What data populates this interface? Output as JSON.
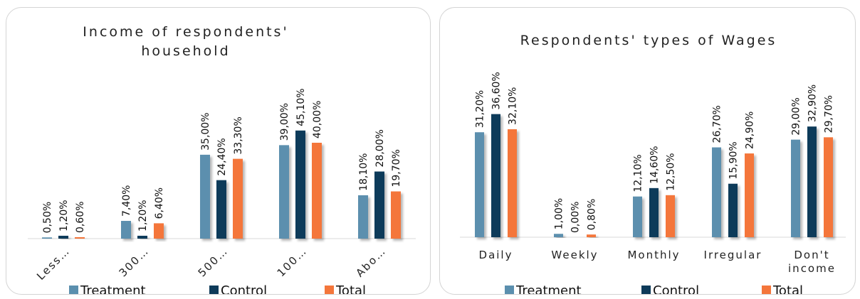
{
  "colors": {
    "Treatment": "#5b8fae",
    "Control": "#0e3b5a",
    "Total": "#f4763b"
  },
  "chart_data": [
    {
      "type": "bar",
      "title": "Income of respondents' household",
      "title_lines": [
        "Income of respondents'",
        "household"
      ],
      "categories": [
        "Less…",
        "300…",
        "500…",
        "100…",
        "Abo…"
      ],
      "series": [
        {
          "name": "Treatment",
          "values": [
            0.5,
            7.4,
            35.0,
            39.0,
            18.1
          ],
          "labels": [
            "0,50%",
            "7,40%",
            "35,00%",
            "39,00%",
            "18,10%"
          ]
        },
        {
          "name": "Control",
          "values": [
            1.2,
            1.2,
            24.4,
            45.1,
            28.0
          ],
          "labels": [
            "1,20%",
            "1,20%",
            "24,40%",
            "45,10%",
            "28,00%"
          ]
        },
        {
          "name": "Total",
          "values": [
            0.6,
            6.4,
            33.3,
            40.0,
            19.7
          ],
          "labels": [
            "0,60%",
            "6,40%",
            "33,30%",
            "40,00%",
            "19,70%"
          ]
        }
      ],
      "ylim": [
        0,
        80
      ],
      "grid": false,
      "legend": "bottom"
    },
    {
      "type": "bar",
      "title": "Respondents' types of Wages",
      "title_lines": [
        "Respondents' types of Wages"
      ],
      "categories": [
        "Daily",
        "Weekly",
        "Monthly",
        "Irregular",
        "Don't income"
      ],
      "category_lines": [
        [
          "Daily"
        ],
        [
          "Weekly"
        ],
        [
          "Monthly"
        ],
        [
          "Irregular"
        ],
        [
          "Don't",
          "income"
        ]
      ],
      "series": [
        {
          "name": "Treatment",
          "values": [
            31.2,
            1.0,
            12.1,
            26.7,
            29.0
          ],
          "labels": [
            "31,20%",
            "1,00%",
            "12,10%",
            "26,70%",
            "29,00%"
          ]
        },
        {
          "name": "Control",
          "values": [
            36.6,
            0.0,
            14.6,
            15.9,
            32.9
          ],
          "labels": [
            "36,60%",
            "0,00%",
            "14,60%",
            "15,90%",
            "32,90%"
          ]
        },
        {
          "name": "Total",
          "values": [
            32.1,
            0.8,
            12.5,
            24.9,
            29.7
          ],
          "labels": [
            "32,10%",
            "0,80%",
            "12,50%",
            "24,90%",
            "29,70%"
          ]
        }
      ],
      "ylim": [
        0,
        57
      ],
      "grid": false,
      "legend": "bottom"
    }
  ]
}
